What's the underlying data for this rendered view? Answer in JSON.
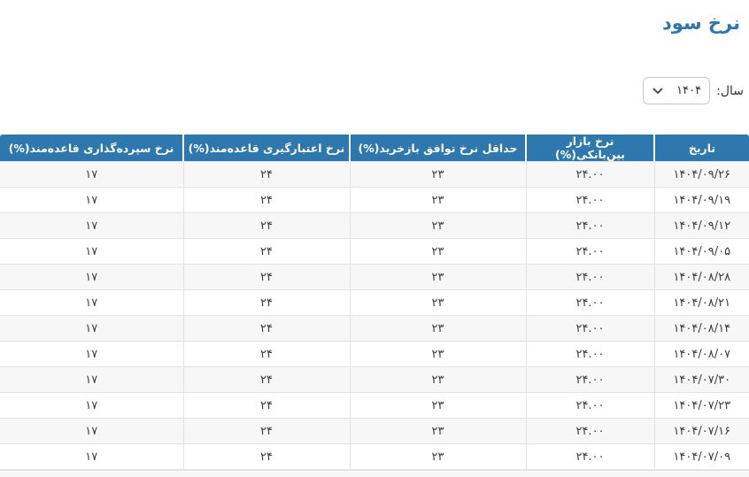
{
  "page": {
    "title": "نرخ سود",
    "year_label": "سال:",
    "year_value": "۱۴۰۴"
  },
  "icons": {
    "year_select_chevron": "chevron-down-icon"
  },
  "colors": {
    "header_bg": "#2e78b0",
    "title_color": "#2a77ad",
    "stripe": "#f7f7f7",
    "border": "#e3e3e3",
    "text": "#3d3d3d",
    "header_text": "#ffffff"
  },
  "table": {
    "columns": [
      {
        "key": "date",
        "label": "تاریخ"
      },
      {
        "key": "interbank",
        "label": "نرخ بازار بین‌بانکی(%)"
      },
      {
        "key": "repo",
        "label": "حداقل نرخ توافق بازخرید(%)"
      },
      {
        "key": "credit",
        "label": "نرخ اعتبارگیری قاعده‌مند(%)"
      },
      {
        "key": "deposit",
        "label": "نرخ سپرده‌گذاری قاعده‌مند(%)"
      }
    ],
    "rows": [
      {
        "date": "۱۴۰۴/۰۹/۲۶",
        "interbank": "۲۴.۰۰",
        "repo": "۲۳",
        "credit": "۲۴",
        "deposit": "۱۷"
      },
      {
        "date": "۱۴۰۴/۰۹/۱۹",
        "interbank": "۲۴.۰۰",
        "repo": "۲۳",
        "credit": "۲۴",
        "deposit": "۱۷"
      },
      {
        "date": "۱۴۰۴/۰۹/۱۲",
        "interbank": "۲۴.۰۰",
        "repo": "۲۳",
        "credit": "۲۴",
        "deposit": "۱۷"
      },
      {
        "date": "۱۴۰۴/۰۹/۰۵",
        "interbank": "۲۴.۰۰",
        "repo": "۲۳",
        "credit": "۲۴",
        "deposit": "۱۷"
      },
      {
        "date": "۱۴۰۴/۰۸/۲۸",
        "interbank": "۲۴.۰۰",
        "repo": "۲۳",
        "credit": "۲۴",
        "deposit": "۱۷"
      },
      {
        "date": "۱۴۰۴/۰۸/۲۱",
        "interbank": "۲۴.۰۰",
        "repo": "۲۳",
        "credit": "۲۴",
        "deposit": "۱۷"
      },
      {
        "date": "۱۴۰۴/۰۸/۱۴",
        "interbank": "۲۴.۰۰",
        "repo": "۲۳",
        "credit": "۲۴",
        "deposit": "۱۷"
      },
      {
        "date": "۱۴۰۴/۰۸/۰۷",
        "interbank": "۲۴.۰۰",
        "repo": "۲۳",
        "credit": "۲۴",
        "deposit": "۱۷"
      },
      {
        "date": "۱۴۰۴/۰۷/۳۰",
        "interbank": "۲۴.۰۰",
        "repo": "۲۳",
        "credit": "۲۴",
        "deposit": "۱۷"
      },
      {
        "date": "۱۴۰۴/۰۷/۲۳",
        "interbank": "۲۴.۰۰",
        "repo": "۲۳",
        "credit": "۲۴",
        "deposit": "۱۷"
      },
      {
        "date": "۱۴۰۴/۰۷/۱۶",
        "interbank": "۲۴.۰۰",
        "repo": "۲۳",
        "credit": "۲۴",
        "deposit": "۱۷"
      },
      {
        "date": "۱۴۰۴/۰۷/۰۹",
        "interbank": "۲۴.۰۰",
        "repo": "۲۳",
        "credit": "۲۴",
        "deposit": "۱۷"
      }
    ]
  }
}
